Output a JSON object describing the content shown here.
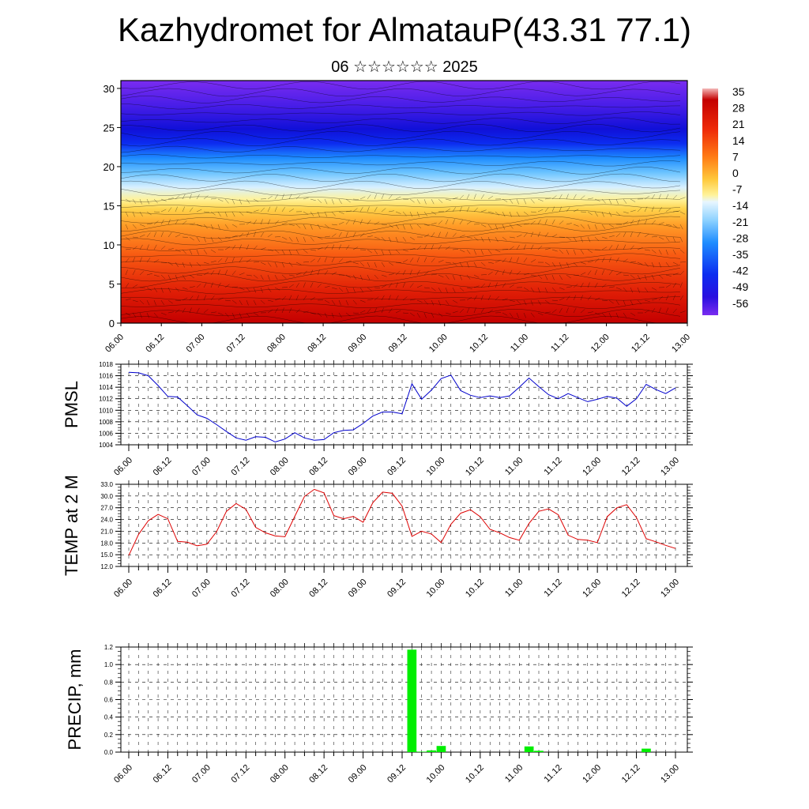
{
  "title": "Kazhydromet for AlmatauP(43.31 77.1)",
  "subtitle": "06 ☆☆☆☆☆☆ 2025",
  "chart_data": [
    {
      "type": "heatmap",
      "name": "cross-section",
      "x_tick_labels": [
        "06.00",
        "06.12",
        "07.00",
        "07.12",
        "08.00",
        "08.12",
        "09.00",
        "09.12",
        "10.00",
        "10.12",
        "11.00",
        "11.12",
        "12.00",
        "12.12",
        "13.00"
      ],
      "y_tick_labels": [
        "0",
        "5",
        "10",
        "15",
        "20",
        "25",
        "30"
      ],
      "ylim": [
        0,
        31
      ],
      "colorbar_labels": [
        "35",
        "28",
        "21",
        "14",
        "7",
        "0",
        "-7",
        "-14",
        "-21",
        "-28",
        "-35",
        "-42",
        "-49",
        "-56"
      ],
      "colors": {
        "warm_deep": "#c80000",
        "warm": "#f03c10",
        "orange": "#ff8c1a",
        "yellow": "#fff39a",
        "light_blue": "#a8dcff",
        "blue": "#1e8cff",
        "deep_blue": "#1010e0",
        "violet": "#7a2cf0"
      },
      "temperature_profile": [
        {
          "height": 0,
          "temp": 25
        },
        {
          "height": 4,
          "temp": 21
        },
        {
          "height": 9,
          "temp": 14
        },
        {
          "height": 13,
          "temp": 0
        },
        {
          "height": 15.5,
          "temp": -7
        },
        {
          "height": 17,
          "temp": -14
        },
        {
          "height": 20,
          "temp": -30
        },
        {
          "height": 23,
          "temp": -50
        },
        {
          "height": 26,
          "temp": -45
        },
        {
          "height": 31,
          "temp": -60
        }
      ]
    },
    {
      "type": "line",
      "ylabel": "PMSL",
      "ylim": [
        1004,
        1018
      ],
      "y_tick_labels": [
        "1004",
        "1006",
        "1008",
        "1010",
        "1012",
        "1014",
        "1016",
        "1018"
      ],
      "x_tick_labels": [
        "06.00",
        "06.12",
        "07.00",
        "07.12",
        "08.00",
        "08.12",
        "09.00",
        "09.12",
        "10.00",
        "10.12",
        "11.00",
        "11.12",
        "12.00",
        "12.12",
        "13.00"
      ],
      "color": "#0000cc",
      "values": [
        1016.6,
        1016.5,
        1016.0,
        1014.3,
        1012.4,
        1012.3,
        1010.8,
        1009.2,
        1008.6,
        1007.5,
        1006.3,
        1005.2,
        1004.8,
        1005.4,
        1005.3,
        1004.5,
        1005.0,
        1006.1,
        1005.2,
        1004.8,
        1004.9,
        1006.1,
        1006.5,
        1006.6,
        1007.7,
        1009.0,
        1009.7,
        1009.7,
        1009.4,
        1014.6,
        1011.9,
        1013.5,
        1015.5,
        1016.1,
        1013.4,
        1012.6,
        1012.2,
        1012.5,
        1012.2,
        1012.5,
        1014.0,
        1015.6,
        1014.1,
        1012.7,
        1012.0,
        1012.9,
        1012.2,
        1011.5,
        1011.9,
        1012.4,
        1012.1,
        1010.7,
        1012.0,
        1014.5,
        1013.6,
        1012.9,
        1013.9
      ]
    },
    {
      "type": "line",
      "ylabel": "TEMP at 2 M",
      "ylim": [
        12.0,
        33.0
      ],
      "y_tick_labels": [
        "12.0",
        "15.0",
        "18.0",
        "21.0",
        "24.0",
        "27.0",
        "30.0",
        "33.0"
      ],
      "x_tick_labels": [
        "06.00",
        "06.12",
        "07.00",
        "07.12",
        "08.00",
        "08.12",
        "09.00",
        "09.12",
        "10.00",
        "10.12",
        "11.00",
        "11.12",
        "12.00",
        "12.12",
        "13.00"
      ],
      "color": "#dd0000",
      "values": [
        14.8,
        20.2,
        23.7,
        25.3,
        24.2,
        18.4,
        18.2,
        17.3,
        17.7,
        20.9,
        26.1,
        28.1,
        26.6,
        22.0,
        20.6,
        19.8,
        19.6,
        24.8,
        29.9,
        31.7,
        30.8,
        25.0,
        24.2,
        24.8,
        23.3,
        28.3,
        31.0,
        30.7,
        27.4,
        19.7,
        21.0,
        20.3,
        18.1,
        22.8,
        25.6,
        26.5,
        24.7,
        21.5,
        20.6,
        19.4,
        18.7,
        23.0,
        26.1,
        26.7,
        25.2,
        20.0,
        18.9,
        18.7,
        18.1,
        24.7,
        27.0,
        27.8,
        24.5,
        19.1,
        18.3,
        17.4,
        16.6
      ]
    },
    {
      "type": "bar",
      "ylabel": "PRECIP, mm",
      "ylim": [
        0.0,
        1.2
      ],
      "y_tick_labels": [
        "0.0",
        "0.2",
        "0.4",
        "0.6",
        "0.8",
        "1.0",
        "1.2"
      ],
      "x_tick_labels": [
        "06.00",
        "06.12",
        "07.00",
        "07.12",
        "08.00",
        "08.12",
        "09.00",
        "09.12",
        "10.00",
        "10.12",
        "11.00",
        "11.12",
        "12.00",
        "12.12",
        "13.00"
      ],
      "color": "#00ee00",
      "bars": [
        {
          "x": 29,
          "value": 1.17
        },
        {
          "x": 30,
          "value": 0.005
        },
        {
          "x": 31,
          "value": 0.02
        },
        {
          "x": 32,
          "value": 0.07
        },
        {
          "x": 41,
          "value": 0.065
        },
        {
          "x": 42,
          "value": 0.015
        },
        {
          "x": 53,
          "value": 0.04
        }
      ],
      "x_steps_total": 56
    }
  ]
}
